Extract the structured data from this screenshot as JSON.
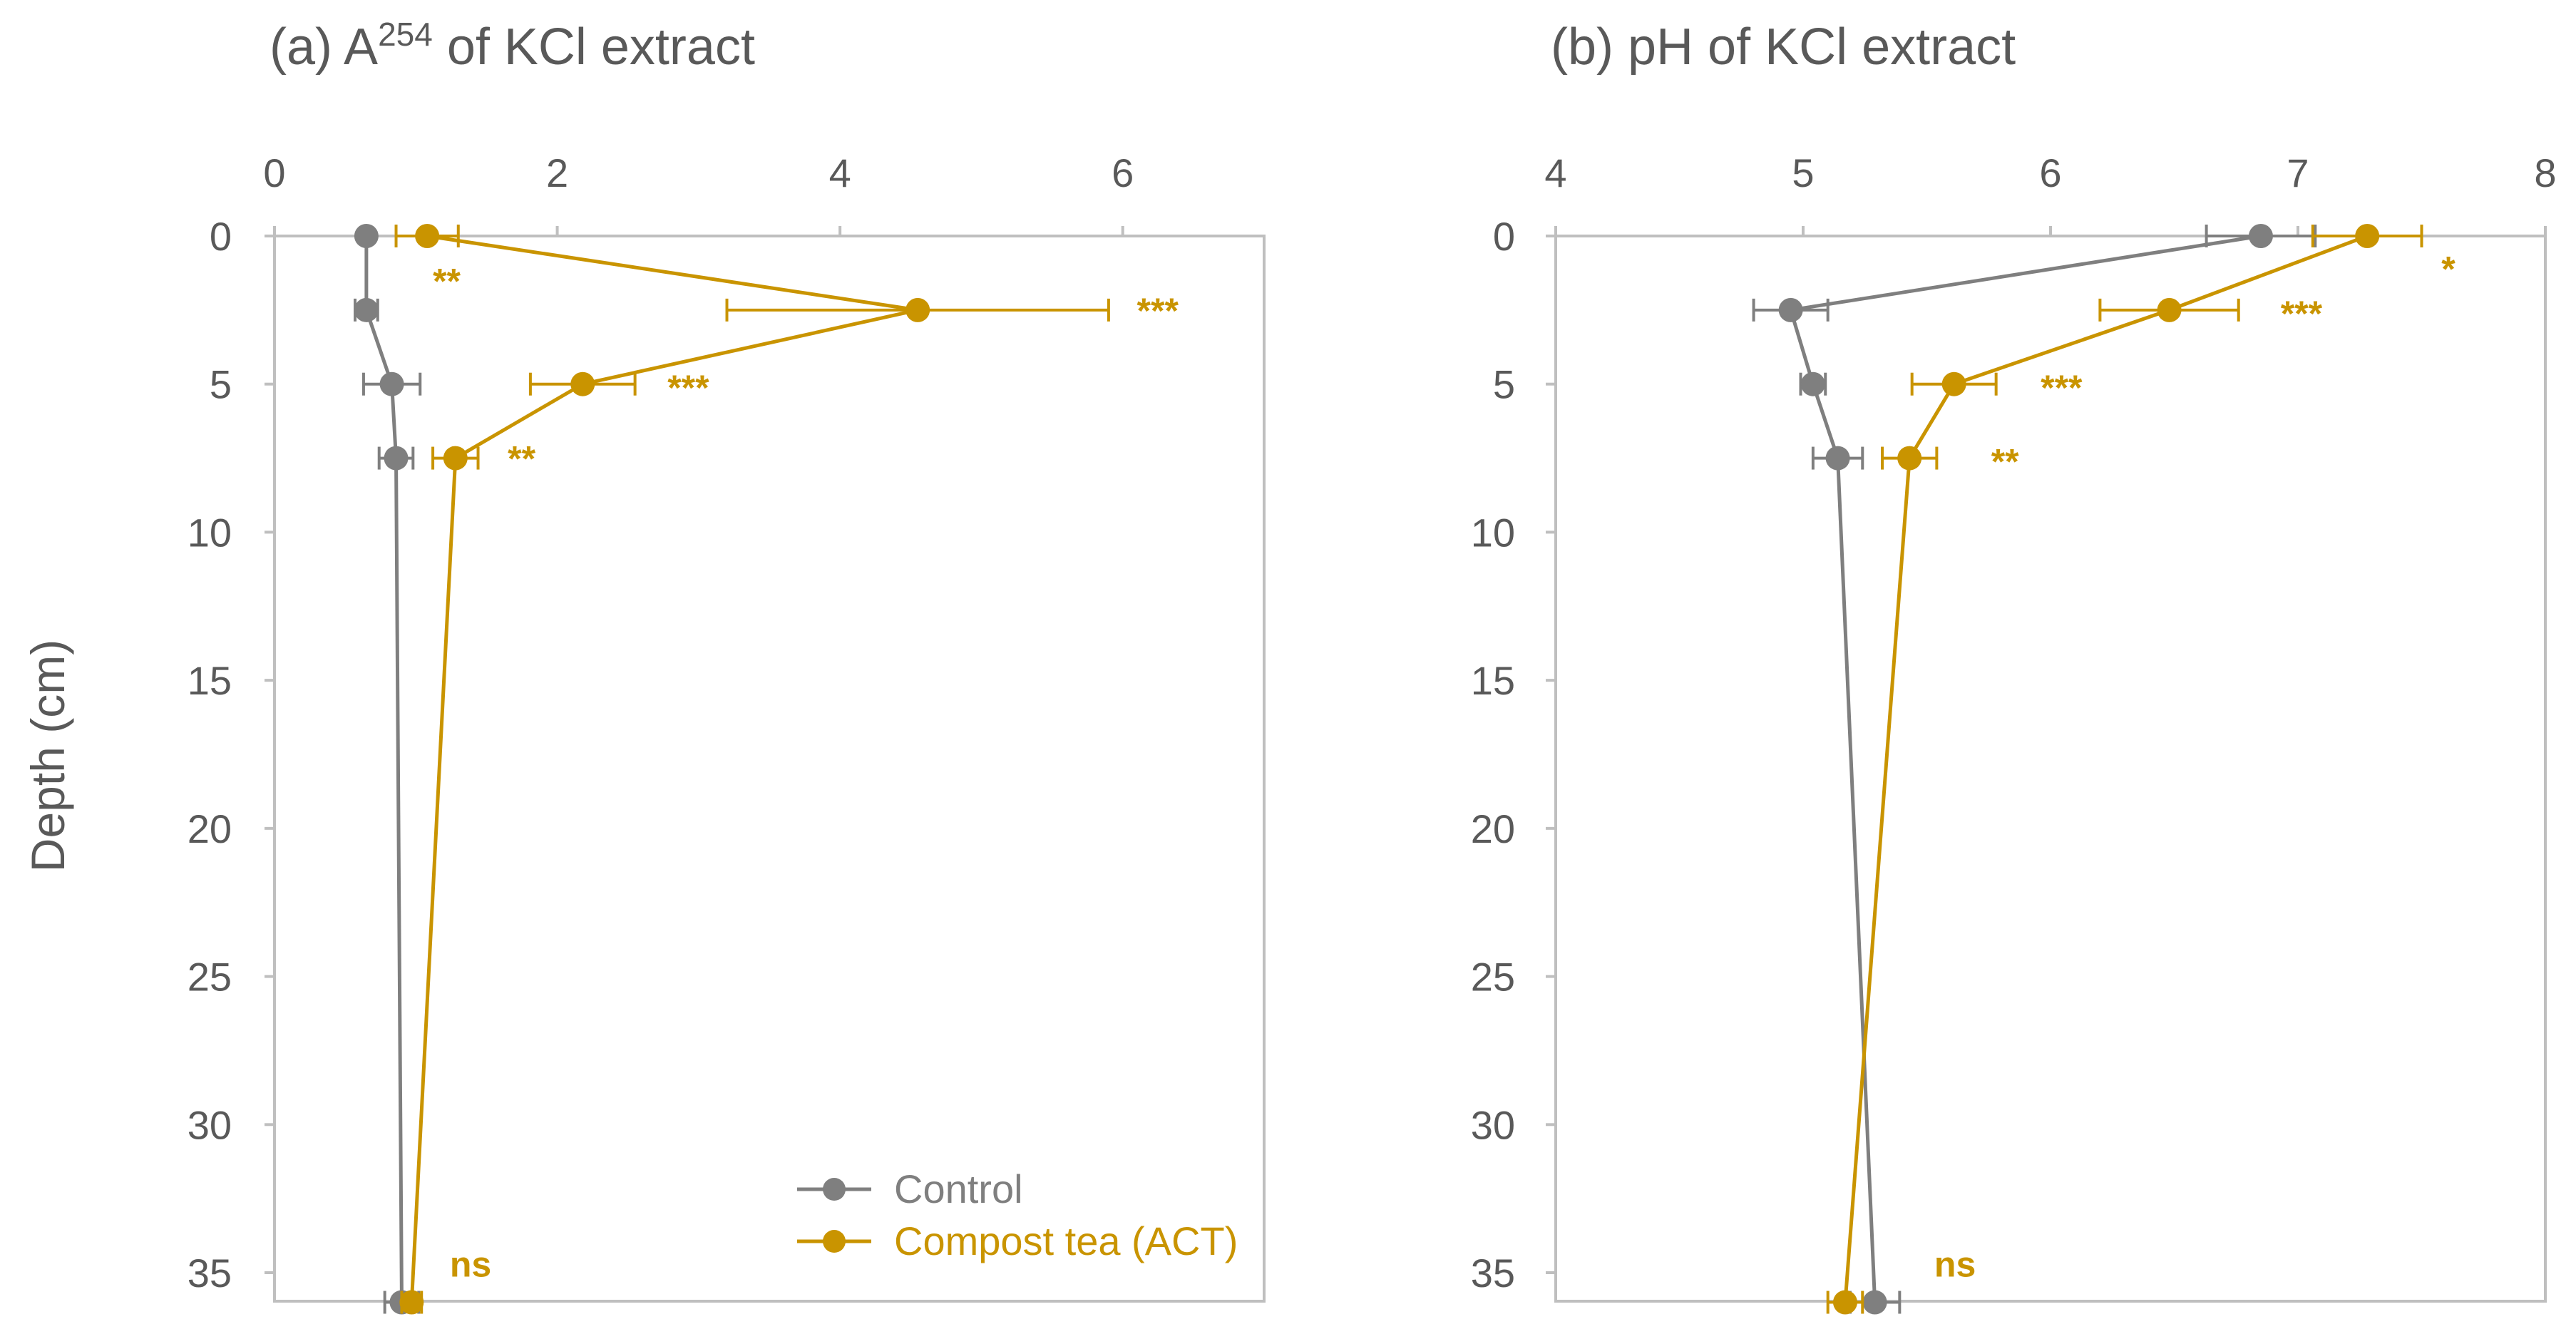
{
  "ylabel": "Depth (cm)",
  "legend": [
    {
      "name": "Control",
      "color": "#7f7f7f"
    },
    {
      "name": "Compost tea (ACT)",
      "color": "#c99400"
    }
  ],
  "chart_data": [
    {
      "type": "line",
      "title_main": "(a) A",
      "title_sup": "254",
      "title_rest": " of KCl extract",
      "x_axis_position": "top",
      "xlim": [
        0,
        7
      ],
      "xticks": [
        0,
        2,
        4,
        6
      ],
      "xtick_labels": [
        "0",
        "2",
        "4",
        "6"
      ],
      "ylim": [
        0,
        36
      ],
      "yticks": [
        0,
        5,
        10,
        15,
        20,
        25,
        30,
        35
      ],
      "ytick_labels": [
        "0",
        "5",
        "10",
        "15",
        "20",
        "25",
        "30",
        "35"
      ],
      "y_inverted": true,
      "grid": false,
      "series": [
        {
          "name": "Control",
          "color": "#7f7f7f",
          "points": [
            {
              "depth": 0,
              "value": 0.65,
              "err": 0
            },
            {
              "depth": 2.5,
              "value": 0.65,
              "err": 0.08
            },
            {
              "depth": 5,
              "value": 0.83,
              "err": 0.2
            },
            {
              "depth": 7.5,
              "value": 0.86,
              "err": 0.12
            },
            {
              "depth": 36,
              "value": 0.9,
              "err": 0.12
            }
          ]
        },
        {
          "name": "Compost tea (ACT)",
          "color": "#c99400",
          "points": [
            {
              "depth": 0,
              "value": 1.08,
              "err": 0.22
            },
            {
              "depth": 2.5,
              "value": 4.55,
              "err": 1.35
            },
            {
              "depth": 5,
              "value": 2.18,
              "err": 0.37
            },
            {
              "depth": 7.5,
              "value": 1.28,
              "err": 0.16
            },
            {
              "depth": 36,
              "value": 0.97,
              "err": 0.07
            }
          ]
        }
      ],
      "annotations": [
        {
          "depth": 1.5,
          "value": 1.12,
          "text": "**"
        },
        {
          "depth": 2.5,
          "value": 6.1,
          "text": "***"
        },
        {
          "depth": 5.1,
          "value": 2.78,
          "text": "***"
        },
        {
          "depth": 7.5,
          "value": 1.65,
          "text": "**"
        },
        {
          "depth": 34.7,
          "value": 1.24,
          "text": "ns"
        }
      ]
    },
    {
      "type": "line",
      "title_main": "(b) pH of KCl extract",
      "title_sup": "",
      "title_rest": "",
      "x_axis_position": "top",
      "xlim": [
        4,
        8
      ],
      "xticks": [
        4,
        5,
        6,
        7,
        8
      ],
      "xtick_labels": [
        "4",
        "5",
        "6",
        "7",
        "8"
      ],
      "ylim": [
        0,
        36
      ],
      "yticks": [
        0,
        5,
        10,
        15,
        20,
        25,
        30,
        35
      ],
      "ytick_labels": [
        "0",
        "5",
        "10",
        "15",
        "20",
        "25",
        "30",
        "35"
      ],
      "y_inverted": true,
      "grid": false,
      "series": [
        {
          "name": "Control",
          "color": "#7f7f7f",
          "points": [
            {
              "depth": 0,
              "value": 6.85,
              "err": 0.22
            },
            {
              "depth": 2.5,
              "value": 4.95,
              "err": 0.15
            },
            {
              "depth": 5,
              "value": 5.04,
              "err": 0.05
            },
            {
              "depth": 7.5,
              "value": 5.14,
              "err": 0.1
            },
            {
              "depth": 36,
              "value": 5.29,
              "err": 0.1
            }
          ]
        },
        {
          "name": "Compost tea (ACT)",
          "color": "#c99400",
          "points": [
            {
              "depth": 0,
              "value": 7.28,
              "err": 0.22
            },
            {
              "depth": 2.5,
              "value": 6.48,
              "err": 0.28
            },
            {
              "depth": 5,
              "value": 5.61,
              "err": 0.17
            },
            {
              "depth": 7.5,
              "value": 5.43,
              "err": 0.11
            },
            {
              "depth": 36,
              "value": 5.17,
              "err": 0.07
            }
          ]
        }
      ],
      "annotations": [
        {
          "depth": 1.1,
          "value": 7.58,
          "text": "*"
        },
        {
          "depth": 2.6,
          "value": 6.93,
          "text": "***"
        },
        {
          "depth": 5.1,
          "value": 5.96,
          "text": "***"
        },
        {
          "depth": 7.6,
          "value": 5.76,
          "text": "**"
        },
        {
          "depth": 34.7,
          "value": 5.53,
          "text": "ns"
        }
      ]
    }
  ]
}
